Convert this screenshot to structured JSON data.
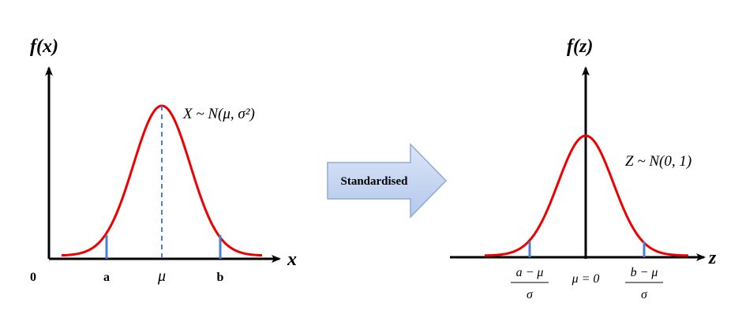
{
  "left_panel": {
    "y_label": "f(x)",
    "x_label": "x",
    "distribution": "X ~ N(μ, σ²)",
    "origin": "0",
    "ticks": [
      "a",
      "μ",
      "b"
    ]
  },
  "arrow_label": "Standardised",
  "right_panel": {
    "y_label": "f(z)",
    "x_label": "z",
    "distribution": "Z ~ N(0, 1)",
    "ticks": [
      {
        "numerator": "a − μ",
        "denominator": "σ"
      },
      {
        "label": "μ = 0"
      },
      {
        "numerator": "b − μ",
        "denominator": "σ"
      }
    ]
  }
}
